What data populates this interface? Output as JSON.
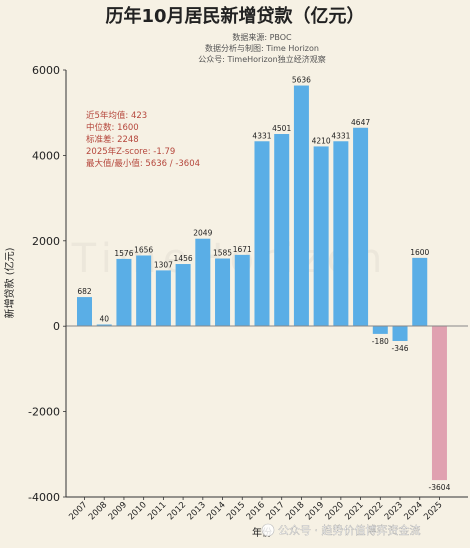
{
  "chart_data": {
    "type": "bar",
    "title": "历年10月居民新增贷款（亿元）",
    "subtitles": [
      "数据来源: PBOC",
      "数据分析与制图: Time Horizon",
      "公众号: TimeHorizon独立经济观察"
    ],
    "xlabel": "年份",
    "ylabel": "新增贷款 (亿元)",
    "categories": [
      "2007",
      "2008",
      "2009",
      "2010",
      "2011",
      "2012",
      "2013",
      "2014",
      "2015",
      "2016",
      "2017",
      "2018",
      "2019",
      "2020",
      "2021",
      "2022",
      "2023",
      "2024",
      "2025"
    ],
    "values": [
      682,
      40,
      1576,
      1656,
      1307,
      1456,
      2049,
      1585,
      1671,
      4331,
      4501,
      5636,
      4210,
      4331,
      4647,
      -180,
      -346,
      1600,
      -3604
    ],
    "data_labels": [
      "682",
      "40",
      "1576",
      "1656",
      "1307",
      "1456",
      "2049",
      "1585",
      "1671",
      "4331",
      "4501",
      "5636",
      "4210",
      "4331",
      "4647",
      "-180",
      "-346",
      "1600",
      "-3604"
    ],
    "highlight_category": "2025",
    "ylim": [
      -4000,
      6000
    ],
    "yticks": [
      -4000,
      -2000,
      0,
      2000,
      4000,
      6000
    ],
    "ytick_labels": [
      "-4000",
      "-2000",
      "0",
      "2000",
      "4000",
      "6000"
    ],
    "grid": false,
    "stats_box": [
      "近5年均值: 423",
      "中位数: 1600",
      "标准差: 2248",
      "2025年Z-score: -1.79",
      "最大值/最小值: 5636 / -3604"
    ],
    "watermark": "TimeHorizon",
    "colors": {
      "bar": "#5aaee6",
      "highlight_bar": "#e0a1b0",
      "stats_text": "#b5473c",
      "background": "#f6f1e4"
    }
  },
  "footer_watermark": "公众号 · 趋势价值博弈资金流"
}
